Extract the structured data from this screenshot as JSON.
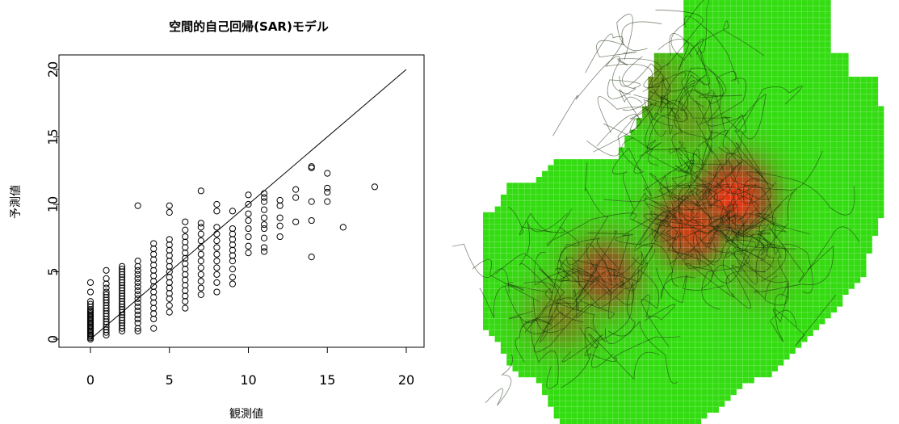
{
  "chart_data": [
    {
      "type": "scatter",
      "title": "空間的自己回帰(SAR)モデル",
      "xlabel": "観測値",
      "ylabel": "予測値",
      "xlim": [
        0,
        20
      ],
      "ylim": [
        0,
        20
      ],
      "xticks": [
        "0",
        "5",
        "10",
        "15",
        "20"
      ],
      "yticks": [
        "0",
        "5",
        "10",
        "15",
        "20"
      ],
      "grid": false,
      "marker": "open-circle",
      "reference_line": {
        "from": [
          0,
          0
        ],
        "to": [
          20,
          20
        ]
      },
      "series": [
        {
          "points": [
            [
              0,
              0.0
            ],
            [
              0,
              0.1
            ],
            [
              0,
              0.2
            ],
            [
              0,
              0.3
            ],
            [
              0,
              0.4
            ],
            [
              0,
              0.5
            ],
            [
              0,
              0.6
            ],
            [
              0,
              0.7
            ],
            [
              0,
              0.8
            ],
            [
              0,
              0.9
            ],
            [
              0,
              1.0
            ],
            [
              0,
              1.1
            ],
            [
              0,
              1.2
            ],
            [
              0,
              1.3
            ],
            [
              0,
              1.4
            ],
            [
              0,
              1.5
            ],
            [
              0,
              1.6
            ],
            [
              0,
              1.7
            ],
            [
              0,
              1.8
            ],
            [
              0,
              1.9
            ],
            [
              0,
              2.0
            ],
            [
              0,
              2.1
            ],
            [
              0,
              2.2
            ],
            [
              0,
              2.4
            ],
            [
              0,
              2.6
            ],
            [
              0,
              2.8
            ],
            [
              0,
              3.5
            ],
            [
              0,
              4.2
            ],
            [
              1,
              0.3
            ],
            [
              1,
              0.5
            ],
            [
              1,
              0.7
            ],
            [
              1,
              0.9
            ],
            [
              1,
              1.1
            ],
            [
              1,
              1.3
            ],
            [
              1,
              1.5
            ],
            [
              1,
              1.7
            ],
            [
              1,
              1.9
            ],
            [
              1,
              2.1
            ],
            [
              1,
              2.3
            ],
            [
              1,
              2.5
            ],
            [
              1,
              2.7
            ],
            [
              1,
              2.9
            ],
            [
              1,
              3.1
            ],
            [
              1,
              3.3
            ],
            [
              1,
              3.5
            ],
            [
              1,
              3.8
            ],
            [
              1,
              4.1
            ],
            [
              1,
              4.5
            ],
            [
              1,
              5.1
            ],
            [
              2,
              0.6
            ],
            [
              2,
              0.8
            ],
            [
              2,
              1.0
            ],
            [
              2,
              1.2
            ],
            [
              2,
              1.4
            ],
            [
              2,
              1.6
            ],
            [
              2,
              1.8
            ],
            [
              2,
              2.0
            ],
            [
              2,
              2.2
            ],
            [
              2,
              2.4
            ],
            [
              2,
              2.6
            ],
            [
              2,
              2.8
            ],
            [
              2,
              3.0
            ],
            [
              2,
              3.2
            ],
            [
              2,
              3.4
            ],
            [
              2,
              3.6
            ],
            [
              2,
              3.8
            ],
            [
              2,
              4.0
            ],
            [
              2,
              4.2
            ],
            [
              2,
              4.4
            ],
            [
              2,
              4.6
            ],
            [
              2,
              4.8
            ],
            [
              2,
              5.0
            ],
            [
              2,
              5.2
            ],
            [
              2,
              5.4
            ],
            [
              3,
              0.6
            ],
            [
              3,
              0.8
            ],
            [
              3,
              1.2
            ],
            [
              3,
              1.5
            ],
            [
              3,
              1.8
            ],
            [
              3,
              2.1
            ],
            [
              3,
              2.4
            ],
            [
              3,
              2.7
            ],
            [
              3,
              3.0
            ],
            [
              3,
              3.3
            ],
            [
              3,
              3.6
            ],
            [
              3,
              3.9
            ],
            [
              3,
              4.2
            ],
            [
              3,
              4.5
            ],
            [
              3,
              4.8
            ],
            [
              3,
              5.1
            ],
            [
              3,
              5.4
            ],
            [
              3,
              5.8
            ],
            [
              3,
              9.9
            ],
            [
              4,
              0.8
            ],
            [
              4,
              1.5
            ],
            [
              4,
              1.9
            ],
            [
              4,
              2.3
            ],
            [
              4,
              2.7
            ],
            [
              4,
              3.1
            ],
            [
              4,
              3.5
            ],
            [
              4,
              3.9
            ],
            [
              4,
              4.3
            ],
            [
              4,
              4.7
            ],
            [
              4,
              5.1
            ],
            [
              4,
              5.5
            ],
            [
              4,
              5.9
            ],
            [
              4,
              6.3
            ],
            [
              4,
              6.7
            ],
            [
              4,
              7.1
            ],
            [
              5,
              2.0
            ],
            [
              5,
              2.5
            ],
            [
              5,
              3.0
            ],
            [
              5,
              3.4
            ],
            [
              5,
              3.8
            ],
            [
              5,
              4.2
            ],
            [
              5,
              4.6
            ],
            [
              5,
              5.0
            ],
            [
              5,
              5.4
            ],
            [
              5,
              5.8
            ],
            [
              5,
              6.2
            ],
            [
              5,
              6.6
            ],
            [
              5,
              7.0
            ],
            [
              5,
              7.4
            ],
            [
              5,
              9.4
            ],
            [
              5,
              9.9
            ],
            [
              6,
              2.3
            ],
            [
              6,
              2.8
            ],
            [
              6,
              3.2
            ],
            [
              6,
              3.6
            ],
            [
              6,
              4.0
            ],
            [
              6,
              4.4
            ],
            [
              6,
              4.8
            ],
            [
              6,
              5.2
            ],
            [
              6,
              5.6
            ],
            [
              6,
              6.0
            ],
            [
              6,
              6.4
            ],
            [
              6,
              6.8
            ],
            [
              6,
              7.2
            ],
            [
              6,
              7.6
            ],
            [
              6,
              8.1
            ],
            [
              6,
              8.7
            ],
            [
              7,
              3.3
            ],
            [
              7,
              3.8
            ],
            [
              7,
              4.3
            ],
            [
              7,
              4.8
            ],
            [
              7,
              5.3
            ],
            [
              7,
              5.8
            ],
            [
              7,
              6.3
            ],
            [
              7,
              6.8
            ],
            [
              7,
              7.3
            ],
            [
              7,
              7.8
            ],
            [
              7,
              8.3
            ],
            [
              7,
              8.6
            ],
            [
              7,
              11.0
            ],
            [
              8,
              3.5
            ],
            [
              8,
              4.2
            ],
            [
              8,
              4.8
            ],
            [
              8,
              5.3
            ],
            [
              8,
              5.8
            ],
            [
              8,
              6.3
            ],
            [
              8,
              6.8
            ],
            [
              8,
              7.3
            ],
            [
              8,
              7.8
            ],
            [
              8,
              8.3
            ],
            [
              8,
              9.5
            ],
            [
              8,
              10.0
            ],
            [
              9,
              4.1
            ],
            [
              9,
              4.6
            ],
            [
              9,
              5.2
            ],
            [
              9,
              5.8
            ],
            [
              9,
              6.2
            ],
            [
              9,
              6.6
            ],
            [
              9,
              7.0
            ],
            [
              9,
              7.4
            ],
            [
              9,
              7.8
            ],
            [
              9,
              8.2
            ],
            [
              9,
              9.5
            ],
            [
              10,
              6.4
            ],
            [
              10,
              6.9
            ],
            [
              10,
              7.6
            ],
            [
              10,
              8.2
            ],
            [
              10,
              8.8
            ],
            [
              10,
              9.3
            ],
            [
              10,
              10.0
            ],
            [
              10,
              10.7
            ],
            [
              11,
              6.5
            ],
            [
              11,
              6.8
            ],
            [
              11,
              7.5
            ],
            [
              11,
              8.2
            ],
            [
              11,
              8.5
            ],
            [
              11,
              9.0
            ],
            [
              11,
              9.6
            ],
            [
              11,
              10.2
            ],
            [
              11,
              10.5
            ],
            [
              11,
              10.8
            ],
            [
              12,
              7.6
            ],
            [
              12,
              8.4
            ],
            [
              12,
              9.0
            ],
            [
              12,
              9.9
            ],
            [
              12,
              10.3
            ],
            [
              13,
              8.7
            ],
            [
              13,
              10.5
            ],
            [
              13,
              11.1
            ],
            [
              14,
              6.1
            ],
            [
              14,
              8.8
            ],
            [
              14,
              10.2
            ],
            [
              14,
              12.7
            ],
            [
              14,
              12.8
            ],
            [
              15,
              10.2
            ],
            [
              15,
              10.9
            ],
            [
              15,
              11.2
            ],
            [
              15,
              12.3
            ],
            [
              16,
              8.3
            ],
            [
              18,
              11.3
            ]
          ]
        }
      ]
    },
    {
      "type": "heatmap",
      "title": "",
      "color_low": "#33dd11",
      "color_high": "#ee3311",
      "hotspots": [
        {
          "gx": 42,
          "gy": 33,
          "level": 1.0
        },
        {
          "gx": 35,
          "gy": 38,
          "level": 0.85
        },
        {
          "gx": 20,
          "gy": 46,
          "level": 0.6
        },
        {
          "gx": 13,
          "gy": 53,
          "level": 0.35
        },
        {
          "gx": 28,
          "gy": 14,
          "level": 0.3
        },
        {
          "gx": 34,
          "gy": 20,
          "level": 0.25
        },
        {
          "gx": 46,
          "gy": 44,
          "level": 0.25
        }
      ]
    }
  ]
}
